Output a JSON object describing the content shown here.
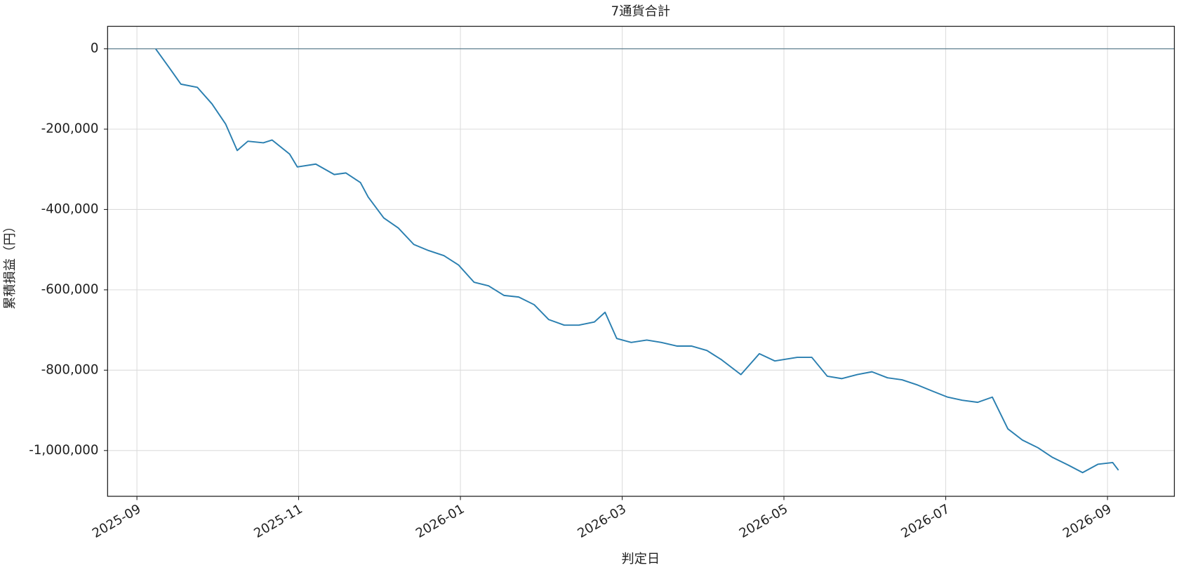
{
  "chart_data": {
    "type": "line",
    "title": "7通貨合計",
    "x_label": "判定日",
    "y_label": "累積損益（円）",
    "x": [
      2025.686,
      2025.7,
      2025.712,
      2025.729,
      2025.744,
      2025.758,
      2025.77,
      2025.781,
      2025.797,
      2025.806,
      2025.824,
      2025.832,
      2025.851,
      2025.87,
      2025.882,
      2025.897,
      2025.905,
      2025.921,
      2025.936,
      2025.952,
      2025.967,
      2025.983,
      2025.998,
      2026.014,
      2026.029,
      2026.045,
      2026.06,
      2026.076,
      2026.091,
      2026.107,
      2026.122,
      2026.138,
      2026.149,
      2026.161,
      2026.176,
      2026.192,
      2026.207,
      2026.223,
      2026.238,
      2026.254,
      2026.269,
      2026.289,
      2026.308,
      2026.324,
      2026.347,
      2026.362,
      2026.378,
      2026.393,
      2026.409,
      2026.424,
      2026.44,
      2026.455,
      2026.471,
      2026.486,
      2026.502,
      2026.517,
      2026.533,
      2026.548,
      2026.564,
      2026.579,
      2026.595,
      2026.61,
      2026.626,
      2026.641,
      2026.657,
      2026.672,
      2026.678
    ],
    "series": [
      {
        "color": "#2a7fb0",
        "values": [
          0,
          -47000,
          -88000,
          -96000,
          -137000,
          -187000,
          -253000,
          -230000,
          -234000,
          -227000,
          -262000,
          -294000,
          -287000,
          -313000,
          -309000,
          -333000,
          -369000,
          -421000,
          -446000,
          -487000,
          -502000,
          -515000,
          -538000,
          -581000,
          -590000,
          -614000,
          -618000,
          -637000,
          -674000,
          -688000,
          -688000,
          -680000,
          -656000,
          -721000,
          -731000,
          -725000,
          -731000,
          -740000,
          -740000,
          -751000,
          -774000,
          -811000,
          -759000,
          -777000,
          -768000,
          -768000,
          -815000,
          -821000,
          -811000,
          -804000,
          -819000,
          -824000,
          -837000,
          -852000,
          -867000,
          -875000,
          -880000,
          -867000,
          -946000,
          -974000,
          -993000,
          -1017000,
          -1036000,
          -1055000,
          -1034000,
          -1030000,
          -1049000
        ]
      }
    ],
    "xlim": [
      2025.6365,
      2026.7356
    ],
    "ylim": [
      -1114000,
      56000
    ],
    "xticks": [
      {
        "value": 2025.6667,
        "label": "2025-09"
      },
      {
        "value": 2025.8333,
        "label": "2025-11"
      },
      {
        "value": 2026.0,
        "label": "2026-01"
      },
      {
        "value": 2026.1667,
        "label": "2026-03"
      },
      {
        "value": 2026.3333,
        "label": "2026-05"
      },
      {
        "value": 2026.5,
        "label": "2026-07"
      },
      {
        "value": 2026.6667,
        "label": "2026-09"
      }
    ],
    "yticks": [
      0,
      {
        "value": -200000,
        "label": "-200,000"
      },
      {
        "value": -400000,
        "label": "-400,000"
      },
      {
        "value": -600000,
        "label": "-600,000"
      },
      {
        "value": -800000,
        "label": "-800,000"
      },
      {
        "value": -1000000,
        "label": "-1,000,000"
      }
    ],
    "hline": 0,
    "hline_color": "#5f7f90",
    "grid": true
  }
}
